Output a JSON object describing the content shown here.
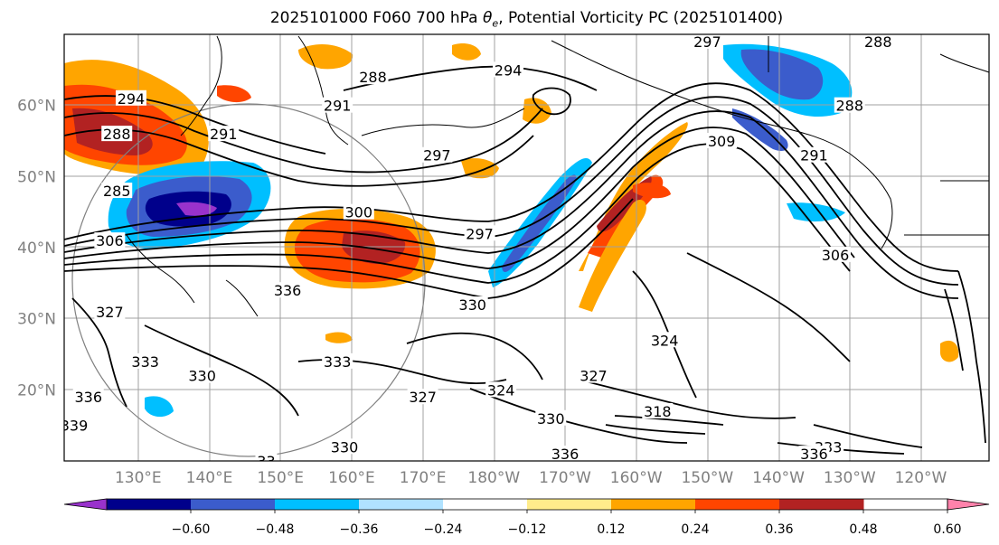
{
  "title": {
    "prefix": "2025101000 F060 700 hPa ",
    "theta": "θ",
    "sub": "e",
    "suffix": ", Potential Vorticity PC (2025101400)"
  },
  "map": {
    "lat_labels": [
      {
        "text": "60°N",
        "lat": 60
      },
      {
        "text": "50°N",
        "lat": 50
      },
      {
        "text": "40°N",
        "lat": 40
      },
      {
        "text": "30°N",
        "lat": 30
      },
      {
        "text": "20°N",
        "lat": 20
      }
    ],
    "lon_labels": [
      {
        "text": "130°E",
        "lon": 130
      },
      {
        "text": "140°E",
        "lon": 140
      },
      {
        "text": "150°E",
        "lon": 150
      },
      {
        "text": "160°E",
        "lon": 160
      },
      {
        "text": "170°E",
        "lon": 170
      },
      {
        "text": "180°W",
        "lon": 180
      },
      {
        "text": "170°W",
        "lon": 190
      },
      {
        "text": "160°W",
        "lon": 200
      },
      {
        "text": "150°W",
        "lon": 210
      },
      {
        "text": "140°W",
        "lon": 220
      },
      {
        "text": "130°W",
        "lon": 230
      },
      {
        "text": "120°W",
        "lon": 240
      }
    ],
    "contour_labels": [
      {
        "text": "288",
        "lon": 163,
        "lat": 64
      },
      {
        "text": "294",
        "lon": 129,
        "lat": 61
      },
      {
        "text": "291",
        "lon": 158,
        "lat": 60
      },
      {
        "text": "297",
        "lon": 210,
        "lat": 69
      },
      {
        "text": "294",
        "lon": 182,
        "lat": 65
      },
      {
        "text": "288",
        "lon": 234,
        "lat": 69
      },
      {
        "text": "288",
        "lon": 230,
        "lat": 60
      },
      {
        "text": "291",
        "lon": 142,
        "lat": 56
      },
      {
        "text": "288",
        "lon": 127,
        "lat": 56
      },
      {
        "text": "297",
        "lon": 172,
        "lat": 53
      },
      {
        "text": "291",
        "lon": 225,
        "lat": 53
      },
      {
        "text": "309",
        "lon": 212,
        "lat": 55
      },
      {
        "text": "285",
        "lon": 127,
        "lat": 48
      },
      {
        "text": "300",
        "lon": 161,
        "lat": 45
      },
      {
        "text": "297",
        "lon": 178,
        "lat": 42
      },
      {
        "text": "306",
        "lon": 126,
        "lat": 41
      },
      {
        "text": "306",
        "lon": 228,
        "lat": 39
      },
      {
        "text": "336",
        "lon": 151,
        "lat": 34
      },
      {
        "text": "330",
        "lon": 177,
        "lat": 32
      },
      {
        "text": "327",
        "lon": 126,
        "lat": 31
      },
      {
        "text": "327",
        "lon": 194,
        "lat": 22
      },
      {
        "text": "324",
        "lon": 204,
        "lat": 27
      },
      {
        "text": "333",
        "lon": 131,
        "lat": 24
      },
      {
        "text": "330",
        "lon": 139,
        "lat": 22
      },
      {
        "text": "333",
        "lon": 158,
        "lat": 24
      },
      {
        "text": "324",
        "lon": 181,
        "lat": 20
      },
      {
        "text": "330",
        "lon": 188,
        "lat": 16
      },
      {
        "text": "327",
        "lon": 170,
        "lat": 19
      },
      {
        "text": "318",
        "lon": 203,
        "lat": 17
      },
      {
        "text": "336",
        "lon": 123,
        "lat": 19
      },
      {
        "text": "336",
        "lon": 190,
        "lat": 11
      },
      {
        "text": "330",
        "lon": 159,
        "lat": 12
      },
      {
        "text": "333",
        "lon": 227,
        "lat": 12
      },
      {
        "text": "336",
        "lon": 225,
        "lat": 11
      },
      {
        "text": "33",
        "lon": 148,
        "lat": 10
      },
      {
        "text": "339",
        "lon": 121,
        "lat": 15
      }
    ]
  },
  "colorbar": {
    "colors": [
      "#9932cc",
      "#00008b",
      "#3b5ccc",
      "#00bfff",
      "#b0e2ff",
      "#ffffff",
      "#ffec8b",
      "#ffa500",
      "#ff4500",
      "#b22222",
      "#ff82ab"
    ],
    "tick_labels": [
      "−0.60",
      "−0.48",
      "−0.36",
      "−0.24",
      "−0.12",
      "0.12",
      "0.24",
      "0.36",
      "0.48",
      "0.60"
    ]
  }
}
